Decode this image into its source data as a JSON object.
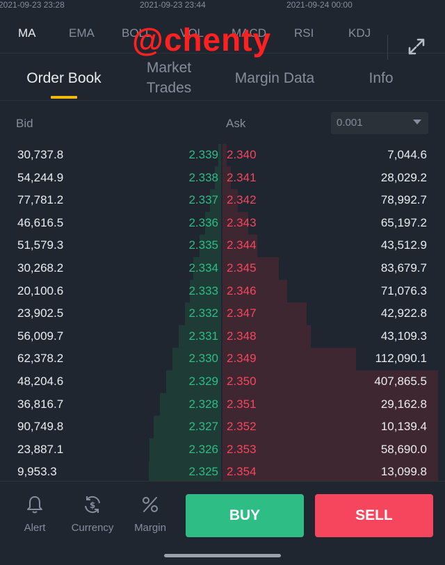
{
  "time_axis": [
    "2021-09-23 23:28",
    "2021-09-23 23:44",
    "2021-09-24 00:00"
  ],
  "indicators": [
    "MA",
    "EMA",
    "BOLL",
    "VOL",
    "MACD",
    "RSI",
    "KDJ"
  ],
  "active_indicator": "MA",
  "watermark": "@chenty",
  "tabs": [
    "Order Book",
    "Market\nTrades",
    "Margin Data",
    "Info"
  ],
  "active_tab": "Order Book",
  "book": {
    "bid_header": "Bid",
    "ask_header": "Ask",
    "precision": "0.001",
    "bids": [
      {
        "qty": "30,737.8",
        "price": "2.339",
        "depth": 0.02
      },
      {
        "qty": "54,244.9",
        "price": "2.338",
        "depth": 0.05
      },
      {
        "qty": "77,781.2",
        "price": "2.337",
        "depth": 0.09
      },
      {
        "qty": "46,616.5",
        "price": "2.336",
        "depth": 0.13
      },
      {
        "qty": "51,579.3",
        "price": "2.335",
        "depth": 0.17
      },
      {
        "qty": "30,268.2",
        "price": "2.334",
        "depth": 0.22
      },
      {
        "qty": "20,100.6",
        "price": "2.333",
        "depth": 0.25
      },
      {
        "qty": "23,902.5",
        "price": "2.332",
        "depth": 0.29
      },
      {
        "qty": "56,009.7",
        "price": "2.331",
        "depth": 0.34
      },
      {
        "qty": "62,378.2",
        "price": "2.330",
        "depth": 0.39
      },
      {
        "qty": "48,204.6",
        "price": "2.329",
        "depth": 0.44
      },
      {
        "qty": "36,816.7",
        "price": "2.328",
        "depth": 0.49
      },
      {
        "qty": "90,749.8",
        "price": "2.327",
        "depth": 0.54
      },
      {
        "qty": "23,887.1",
        "price": "2.326",
        "depth": 0.57
      },
      {
        "qty": "9,953.3",
        "price": "2.325",
        "depth": 0.58
      }
    ],
    "asks": [
      {
        "price": "2.340",
        "qty": "7,044.6",
        "depth": 0.02
      },
      {
        "price": "2.341",
        "qty": "28,029.2",
        "depth": 0.04
      },
      {
        "price": "2.342",
        "qty": "78,992.7",
        "depth": 0.07
      },
      {
        "price": "2.343",
        "qty": "65,197.2",
        "depth": 0.12
      },
      {
        "price": "2.344",
        "qty": "43,512.9",
        "depth": 0.16
      },
      {
        "price": "2.345",
        "qty": "83,679.7",
        "depth": 0.26
      },
      {
        "price": "2.346",
        "qty": "71,076.3",
        "depth": 0.3
      },
      {
        "price": "2.347",
        "qty": "42,922.8",
        "depth": 0.39
      },
      {
        "price": "2.348",
        "qty": "43,109.3",
        "depth": 0.41
      },
      {
        "price": "2.349",
        "qty": "112,090.1",
        "depth": 0.62
      },
      {
        "price": "2.350",
        "qty": "407,865.5",
        "depth": 1.0
      },
      {
        "price": "2.351",
        "qty": "29,162.8",
        "depth": 1.0
      },
      {
        "price": "2.352",
        "qty": "10,139.4",
        "depth": 1.0
      },
      {
        "price": "2.353",
        "qty": "58,690.0",
        "depth": 1.0
      },
      {
        "price": "2.354",
        "qty": "13,099.8",
        "depth": 1.0
      }
    ]
  },
  "bottom_actions": [
    {
      "label": "Alert",
      "icon": "bell-icon"
    },
    {
      "label": "Currency",
      "icon": "currency-exchange-icon"
    },
    {
      "label": "Margin",
      "icon": "percent-icon"
    }
  ],
  "buy_label": "BUY",
  "sell_label": "SELL",
  "colors": {
    "bid": "#2ebd85",
    "ask": "#f6465d",
    "accent": "#f0b90b",
    "background": "#1f2630"
  }
}
